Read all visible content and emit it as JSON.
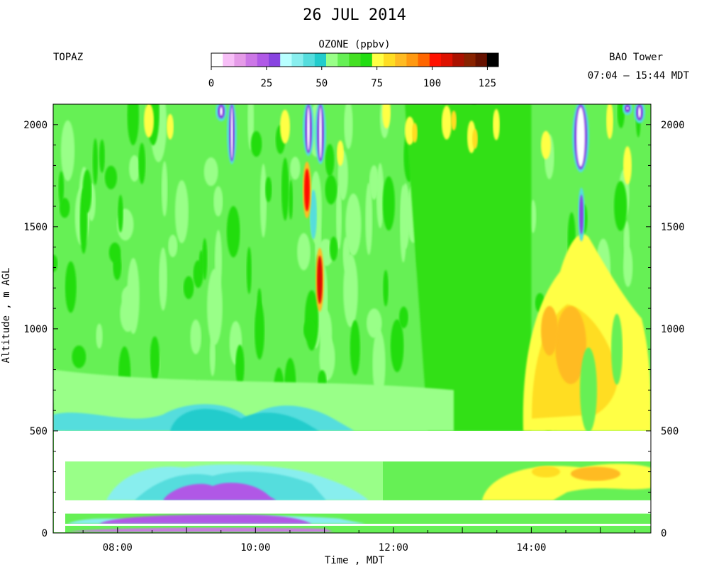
{
  "chart_data": {
    "type": "heatmap",
    "title": "26 JUL 2014",
    "instrument": "TOPAZ",
    "site": "BAO Tower",
    "time_range": "07:04 – 15:44 MDT",
    "colorbar": {
      "label": "OZONE (ppbv)",
      "ticks": [
        "0",
        "25",
        "50",
        "75",
        "100",
        "125"
      ],
      "range": [
        0,
        130
      ],
      "colors": [
        "#ffffff",
        "#f7bff7",
        "#e59be8",
        "#cc77e6",
        "#b059e6",
        "#8844e0",
        "#b8ffff",
        "#88eeee",
        "#55dddd",
        "#22cccc",
        "#99ff88",
        "#66f055",
        "#44e022",
        "#22dd11",
        "#ffff44",
        "#ffdd22",
        "#ffbb22",
        "#ff9911",
        "#ff6600",
        "#ff1100",
        "#dd1100",
        "#aa1100",
        "#882200",
        "#661100",
        "#000000"
      ]
    },
    "xlabel": "Time , MDT",
    "ylabel": "Altitude , m AGL",
    "xlim": [
      "07:04",
      "15:44"
    ],
    "ylim": [
      0,
      2100
    ],
    "x_ticks": [
      "08:00",
      "10:00",
      "12:00",
      "14:00"
    ],
    "y_ticks": [
      "0",
      "500",
      "1000",
      "1500",
      "2000"
    ],
    "data_gaps_m": [
      [
        350,
        500
      ],
      [
        95,
        160
      ],
      [
        35,
        45
      ]
    ]
  }
}
